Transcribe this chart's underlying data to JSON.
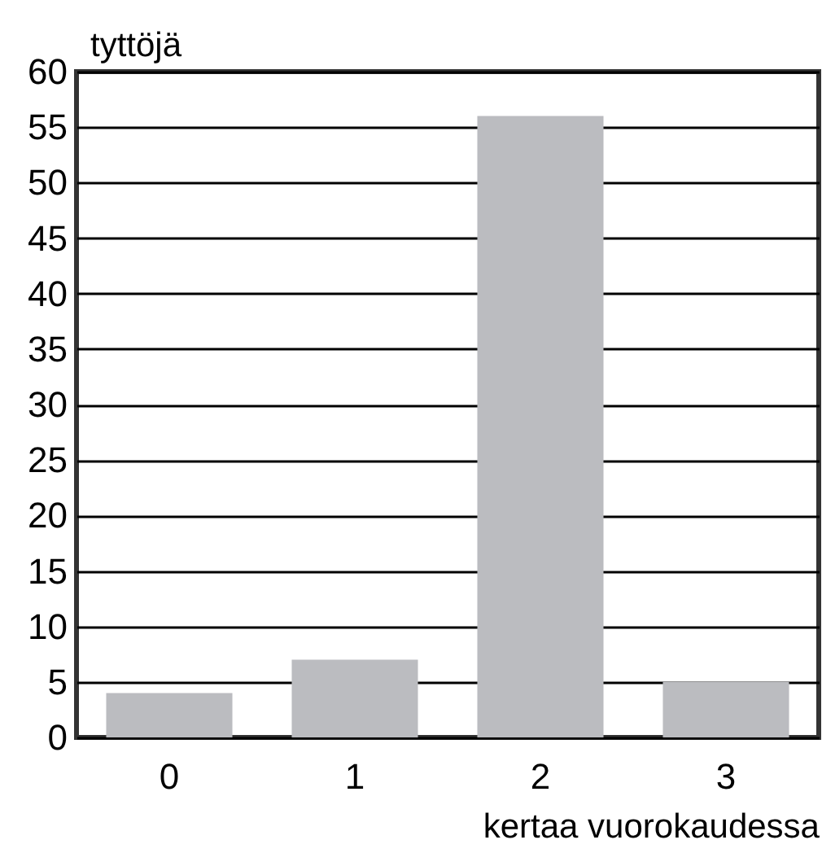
{
  "chart_data": {
    "type": "bar",
    "ylabel": "tyttöjä",
    "xlabel": "kertaa vuorokaudessa",
    "categories": [
      "0",
      "1",
      "2",
      "3"
    ],
    "values": [
      4,
      7,
      56,
      5
    ],
    "color": "#bbbcc0",
    "ylim": [
      0,
      60
    ],
    "yticks": [
      0,
      5,
      10,
      15,
      20,
      25,
      30,
      35,
      40,
      45,
      50,
      55,
      60
    ],
    "grid": "y"
  }
}
